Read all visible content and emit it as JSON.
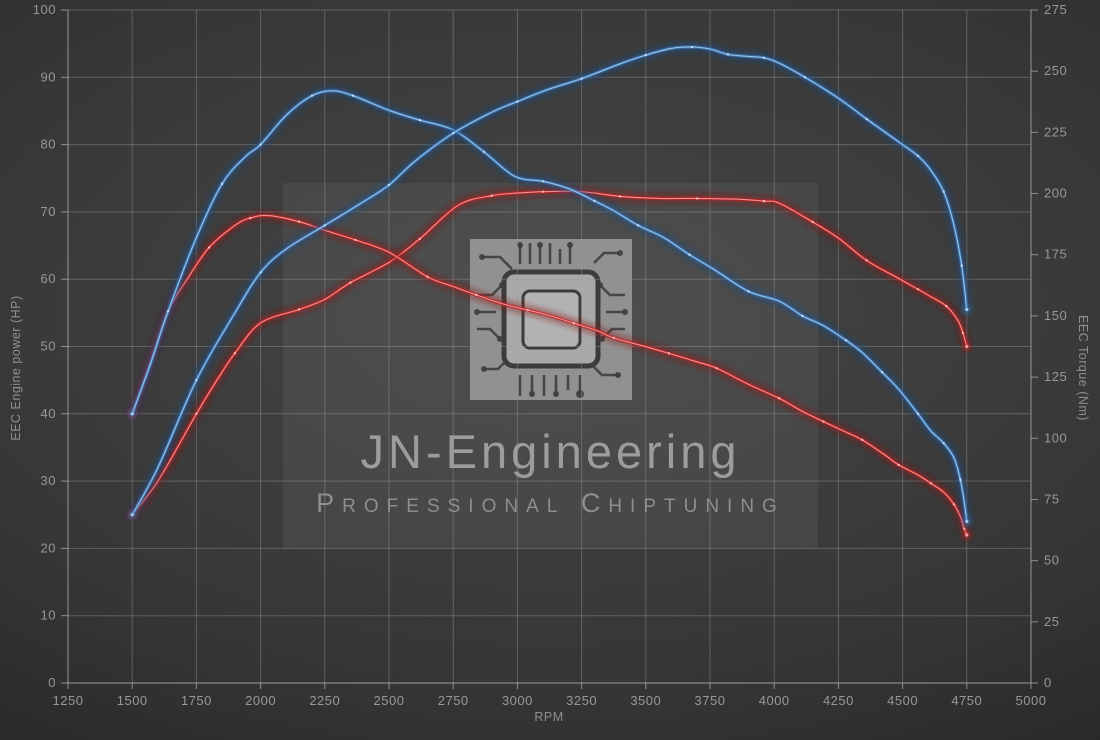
{
  "watermark": {
    "brand": "JN-Engineering",
    "tagline": "Professional Chiptuning"
  },
  "chart_data": {
    "type": "line",
    "title": "",
    "legend": "none",
    "grid": "on",
    "x_axis": {
      "label": "RPM",
      "min": 1250,
      "max": 5000,
      "ticks": [
        1250,
        1500,
        1750,
        2000,
        2250,
        2500,
        2750,
        3000,
        3250,
        3500,
        3750,
        4000,
        4250,
        4500,
        4750,
        5000
      ]
    },
    "y_axis_left": {
      "label": "EEC Engine power (HP)",
      "min": 0,
      "max": 100,
      "ticks": [
        0,
        10,
        20,
        30,
        40,
        50,
        60,
        70,
        80,
        90,
        100
      ]
    },
    "y_axis_right": {
      "label": "EEC Torque (Nm)",
      "min": 0,
      "max": 275,
      "ticks": [
        0,
        25,
        50,
        75,
        100,
        125,
        150,
        175,
        200,
        225,
        250,
        275
      ]
    },
    "series": [
      {
        "name": "red-power",
        "axis": "left",
        "unit": "HP",
        "color_role": "red",
        "peak": {
          "rpm": 3250,
          "value": 73
        },
        "points": [
          [
            1500,
            25
          ],
          [
            1600,
            30
          ],
          [
            1750,
            40
          ],
          [
            1830,
            45
          ],
          [
            1900,
            49
          ],
          [
            2000,
            53.5
          ],
          [
            2150,
            55.5
          ],
          [
            2250,
            57
          ],
          [
            2350,
            59.5
          ],
          [
            2500,
            62.5
          ],
          [
            2620,
            66
          ],
          [
            2770,
            71
          ],
          [
            2900,
            72.4
          ],
          [
            3000,
            72.8
          ],
          [
            3100,
            73
          ],
          [
            3250,
            73
          ],
          [
            3400,
            72.3
          ],
          [
            3550,
            72
          ],
          [
            3700,
            72
          ],
          [
            3850,
            71.9
          ],
          [
            3960,
            71.6
          ],
          [
            4020,
            71.3
          ],
          [
            4150,
            68.5
          ],
          [
            4250,
            66.1
          ],
          [
            4360,
            62.8
          ],
          [
            4485,
            60.1
          ],
          [
            4560,
            58.5
          ],
          [
            4610,
            57.4
          ],
          [
            4670,
            56
          ],
          [
            4715,
            53.9
          ],
          [
            4735,
            52
          ],
          [
            4750,
            50
          ]
        ]
      },
      {
        "name": "red-torque",
        "axis": "right",
        "unit": "Nm",
        "color_role": "red",
        "peak": {
          "rpm": 2030,
          "value": 191
        },
        "points": [
          [
            1500,
            110
          ],
          [
            1570,
            131
          ],
          [
            1640,
            152
          ],
          [
            1720,
            166
          ],
          [
            1800,
            178
          ],
          [
            1900,
            187
          ],
          [
            1960,
            190
          ],
          [
            2030,
            191
          ],
          [
            2150,
            188.5
          ],
          [
            2250,
            185
          ],
          [
            2370,
            181
          ],
          [
            2500,
            176
          ],
          [
            2650,
            166
          ],
          [
            2750,
            162
          ],
          [
            2840,
            158.6
          ],
          [
            2940,
            155
          ],
          [
            3040,
            152.4
          ],
          [
            3130,
            150
          ],
          [
            3220,
            147
          ],
          [
            3310,
            144
          ],
          [
            3375,
            141
          ],
          [
            3480,
            138
          ],
          [
            3590,
            134.7
          ],
          [
            3690,
            131.5
          ],
          [
            3776,
            128.6
          ],
          [
            3900,
            122
          ],
          [
            4020,
            116.3
          ],
          [
            4110,
            111
          ],
          [
            4192,
            106.8
          ],
          [
            4280,
            102.5
          ],
          [
            4343,
            99.3
          ],
          [
            4420,
            94
          ],
          [
            4485,
            89.1
          ],
          [
            4560,
            85
          ],
          [
            4610,
            81.6
          ],
          [
            4660,
            78
          ],
          [
            4700,
            73
          ],
          [
            4725,
            68
          ],
          [
            4740,
            63
          ],
          [
            4750,
            60.5
          ]
        ]
      },
      {
        "name": "blue-torque",
        "axis": "right",
        "unit": "Nm",
        "color_role": "blue",
        "peak": {
          "rpm": 2280,
          "value": 242
        },
        "points": [
          [
            1500,
            110
          ],
          [
            1570,
            130
          ],
          [
            1640,
            152
          ],
          [
            1750,
            182
          ],
          [
            1850,
            204
          ],
          [
            1940,
            215
          ],
          [
            2000,
            220
          ],
          [
            2100,
            232
          ],
          [
            2200,
            240
          ],
          [
            2280,
            242
          ],
          [
            2360,
            240
          ],
          [
            2500,
            234
          ],
          [
            2620,
            230
          ],
          [
            2750,
            226
          ],
          [
            2870,
            217
          ],
          [
            2990,
            207
          ],
          [
            3100,
            205
          ],
          [
            3200,
            202
          ],
          [
            3300,
            197
          ],
          [
            3375,
            193
          ],
          [
            3470,
            187
          ],
          [
            3570,
            182
          ],
          [
            3670,
            175
          ],
          [
            3765,
            169
          ],
          [
            3900,
            160
          ],
          [
            4020,
            156
          ],
          [
            4110,
            150
          ],
          [
            4192,
            146
          ],
          [
            4280,
            140
          ],
          [
            4343,
            135
          ],
          [
            4420,
            127
          ],
          [
            4485,
            120
          ],
          [
            4560,
            110
          ],
          [
            4610,
            103
          ],
          [
            4660,
            98
          ],
          [
            4700,
            92
          ],
          [
            4725,
            83
          ],
          [
            4740,
            74
          ],
          [
            4750,
            66
          ]
        ]
      },
      {
        "name": "blue-power",
        "axis": "left",
        "unit": "HP",
        "color_role": "blue",
        "peak": {
          "rpm": 3680,
          "value": 94.5
        },
        "points": [
          [
            1500,
            25
          ],
          [
            1600,
            32
          ],
          [
            1750,
            45
          ],
          [
            1900,
            55
          ],
          [
            2000,
            61
          ],
          [
            2100,
            64.5
          ],
          [
            2250,
            68
          ],
          [
            2400,
            71.5
          ],
          [
            2500,
            74
          ],
          [
            2600,
            77.5
          ],
          [
            2750,
            81.7
          ],
          [
            2900,
            84.8
          ],
          [
            3000,
            86.4
          ],
          [
            3120,
            88.2
          ],
          [
            3250,
            89.8
          ],
          [
            3400,
            92
          ],
          [
            3500,
            93.3
          ],
          [
            3600,
            94.3
          ],
          [
            3680,
            94.5
          ],
          [
            3750,
            94.2
          ],
          [
            3820,
            93.4
          ],
          [
            3900,
            93.1
          ],
          [
            3960,
            92.9
          ],
          [
            4020,
            92.1
          ],
          [
            4120,
            90
          ],
          [
            4250,
            86.9
          ],
          [
            4360,
            83.8
          ],
          [
            4485,
            80.4
          ],
          [
            4560,
            78.3
          ],
          [
            4610,
            76.2
          ],
          [
            4660,
            73
          ],
          [
            4700,
            68
          ],
          [
            4730,
            62
          ],
          [
            4750,
            55.5
          ]
        ]
      }
    ],
    "colors": {
      "blue": {
        "glow": "#1c4c8c",
        "main": "#3d7ab8",
        "core": "#a5c9ea",
        "dot": "#d2e4f6"
      },
      "red": {
        "glow": "#8d1414",
        "main": "#c22525",
        "core": "#f0a0a0",
        "dot": "#ffc4c4"
      },
      "grid": "#9a9a9a",
      "axis": "#b5b5b5",
      "label": "#989898",
      "title": "#8f8f8f"
    }
  }
}
